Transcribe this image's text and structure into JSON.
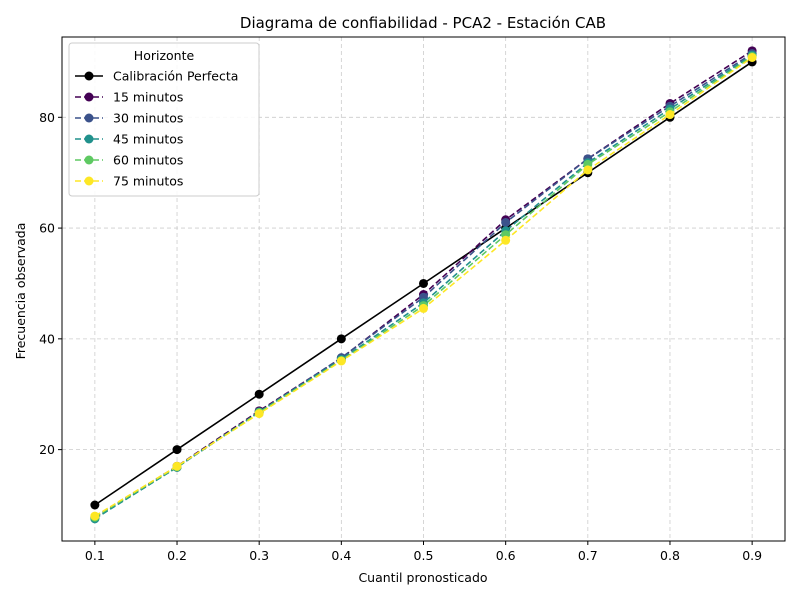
{
  "chart_data": {
    "type": "line",
    "title": "Diagrama de confiabilidad - PCA2 - Estación CAB",
    "xlabel": "Cuantil pronosticado",
    "ylabel": "Frecuencia observada",
    "xlim": [
      0.06,
      0.94
    ],
    "ylim": [
      3.5,
      94.5
    ],
    "x": [
      0.1,
      0.2,
      0.3,
      0.4,
      0.5,
      0.6,
      0.7,
      0.8,
      0.9
    ],
    "xticks": [
      0.1,
      0.2,
      0.3,
      0.4,
      0.5,
      0.6,
      0.7,
      0.8,
      0.9
    ],
    "xtick_labels": [
      "0.1",
      "0.2",
      "0.3",
      "0.4",
      "0.5",
      "0.6",
      "0.7",
      "0.8",
      "0.9"
    ],
    "yticks": [
      20,
      40,
      60,
      80
    ],
    "ytick_labels": [
      "20",
      "40",
      "60",
      "80"
    ],
    "grid": true,
    "legend": {
      "title": "Horizonte",
      "placement": "top-left"
    },
    "series": [
      {
        "name": "Calibración Perfecta",
        "color": "#000000",
        "style": "solid",
        "values": [
          10,
          20,
          30,
          40,
          50,
          60,
          70,
          80,
          90
        ]
      },
      {
        "name": "15 minutos",
        "color": "#440154",
        "style": "dashed",
        "values": [
          7.8,
          17.0,
          27.0,
          36.5,
          48.0,
          61.5,
          72.5,
          82.5,
          92.0
        ]
      },
      {
        "name": "30 minutos",
        "color": "#3b528b",
        "style": "dashed",
        "values": [
          7.6,
          16.8,
          26.8,
          36.6,
          47.5,
          61.0,
          72.5,
          82.0,
          91.5
        ]
      },
      {
        "name": "45 minutos",
        "color": "#21918c",
        "style": "dashed",
        "values": [
          7.5,
          16.8,
          26.8,
          36.3,
          46.5,
          59.5,
          71.8,
          81.5,
          91.2
        ]
      },
      {
        "name": "60 minutos",
        "color": "#5ec962",
        "style": "dashed",
        "values": [
          7.8,
          16.9,
          26.7,
          36.1,
          46.0,
          58.8,
          71.5,
          81.0,
          91.0
        ]
      },
      {
        "name": "75 minutos",
        "color": "#fde725",
        "style": "dashed",
        "values": [
          8.0,
          17.0,
          26.5,
          36.0,
          45.5,
          57.8,
          70.5,
          80.5,
          90.8
        ]
      }
    ]
  }
}
